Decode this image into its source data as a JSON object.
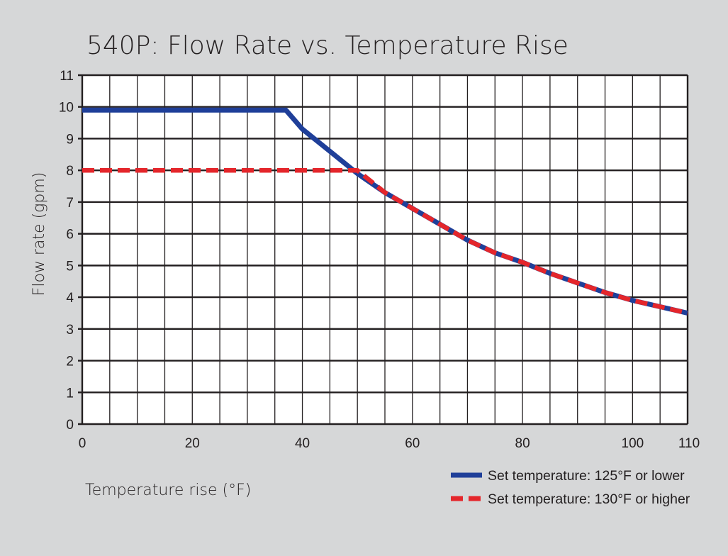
{
  "chart_data": {
    "type": "line",
    "title": "540P: Flow Rate vs. Temperature Rise",
    "xlabel": "Temperature rise (°F)",
    "ylabel": "Flow rate (gpm)",
    "xlim": [
      0,
      110
    ],
    "ylim": [
      0,
      11
    ],
    "x_ticks": [
      "0",
      "20",
      "40",
      "60",
      "80",
      "100",
      "110"
    ],
    "y_ticks": [
      "0",
      "1",
      "2",
      "3",
      "4",
      "5",
      "6",
      "7",
      "8",
      "9",
      "10",
      "11"
    ],
    "grid": true,
    "legend_position": "bottom-right",
    "series": [
      {
        "name": "Set temperature: 125°F or lower",
        "color": "#1f3f99",
        "style": "solid",
        "x": [
          0,
          37,
          40,
          45,
          50,
          55,
          60,
          65,
          70,
          75,
          80,
          85,
          90,
          95,
          100,
          105,
          110
        ],
        "y": [
          9.9,
          9.9,
          9.3,
          8.6,
          7.9,
          7.3,
          6.8,
          6.3,
          5.8,
          5.4,
          5.1,
          4.75,
          4.45,
          4.15,
          3.9,
          3.7,
          3.5
        ]
      },
      {
        "name": "Set temperature: 130°F or higher",
        "color": "#e4262b",
        "style": "dashed",
        "x": [
          0,
          50,
          55,
          60,
          65,
          70,
          75,
          80,
          85,
          90,
          95,
          100,
          105,
          110
        ],
        "y": [
          8.0,
          8.0,
          7.3,
          6.8,
          6.3,
          5.8,
          5.4,
          5.1,
          4.75,
          4.45,
          4.15,
          3.9,
          3.7,
          3.5
        ]
      }
    ]
  }
}
